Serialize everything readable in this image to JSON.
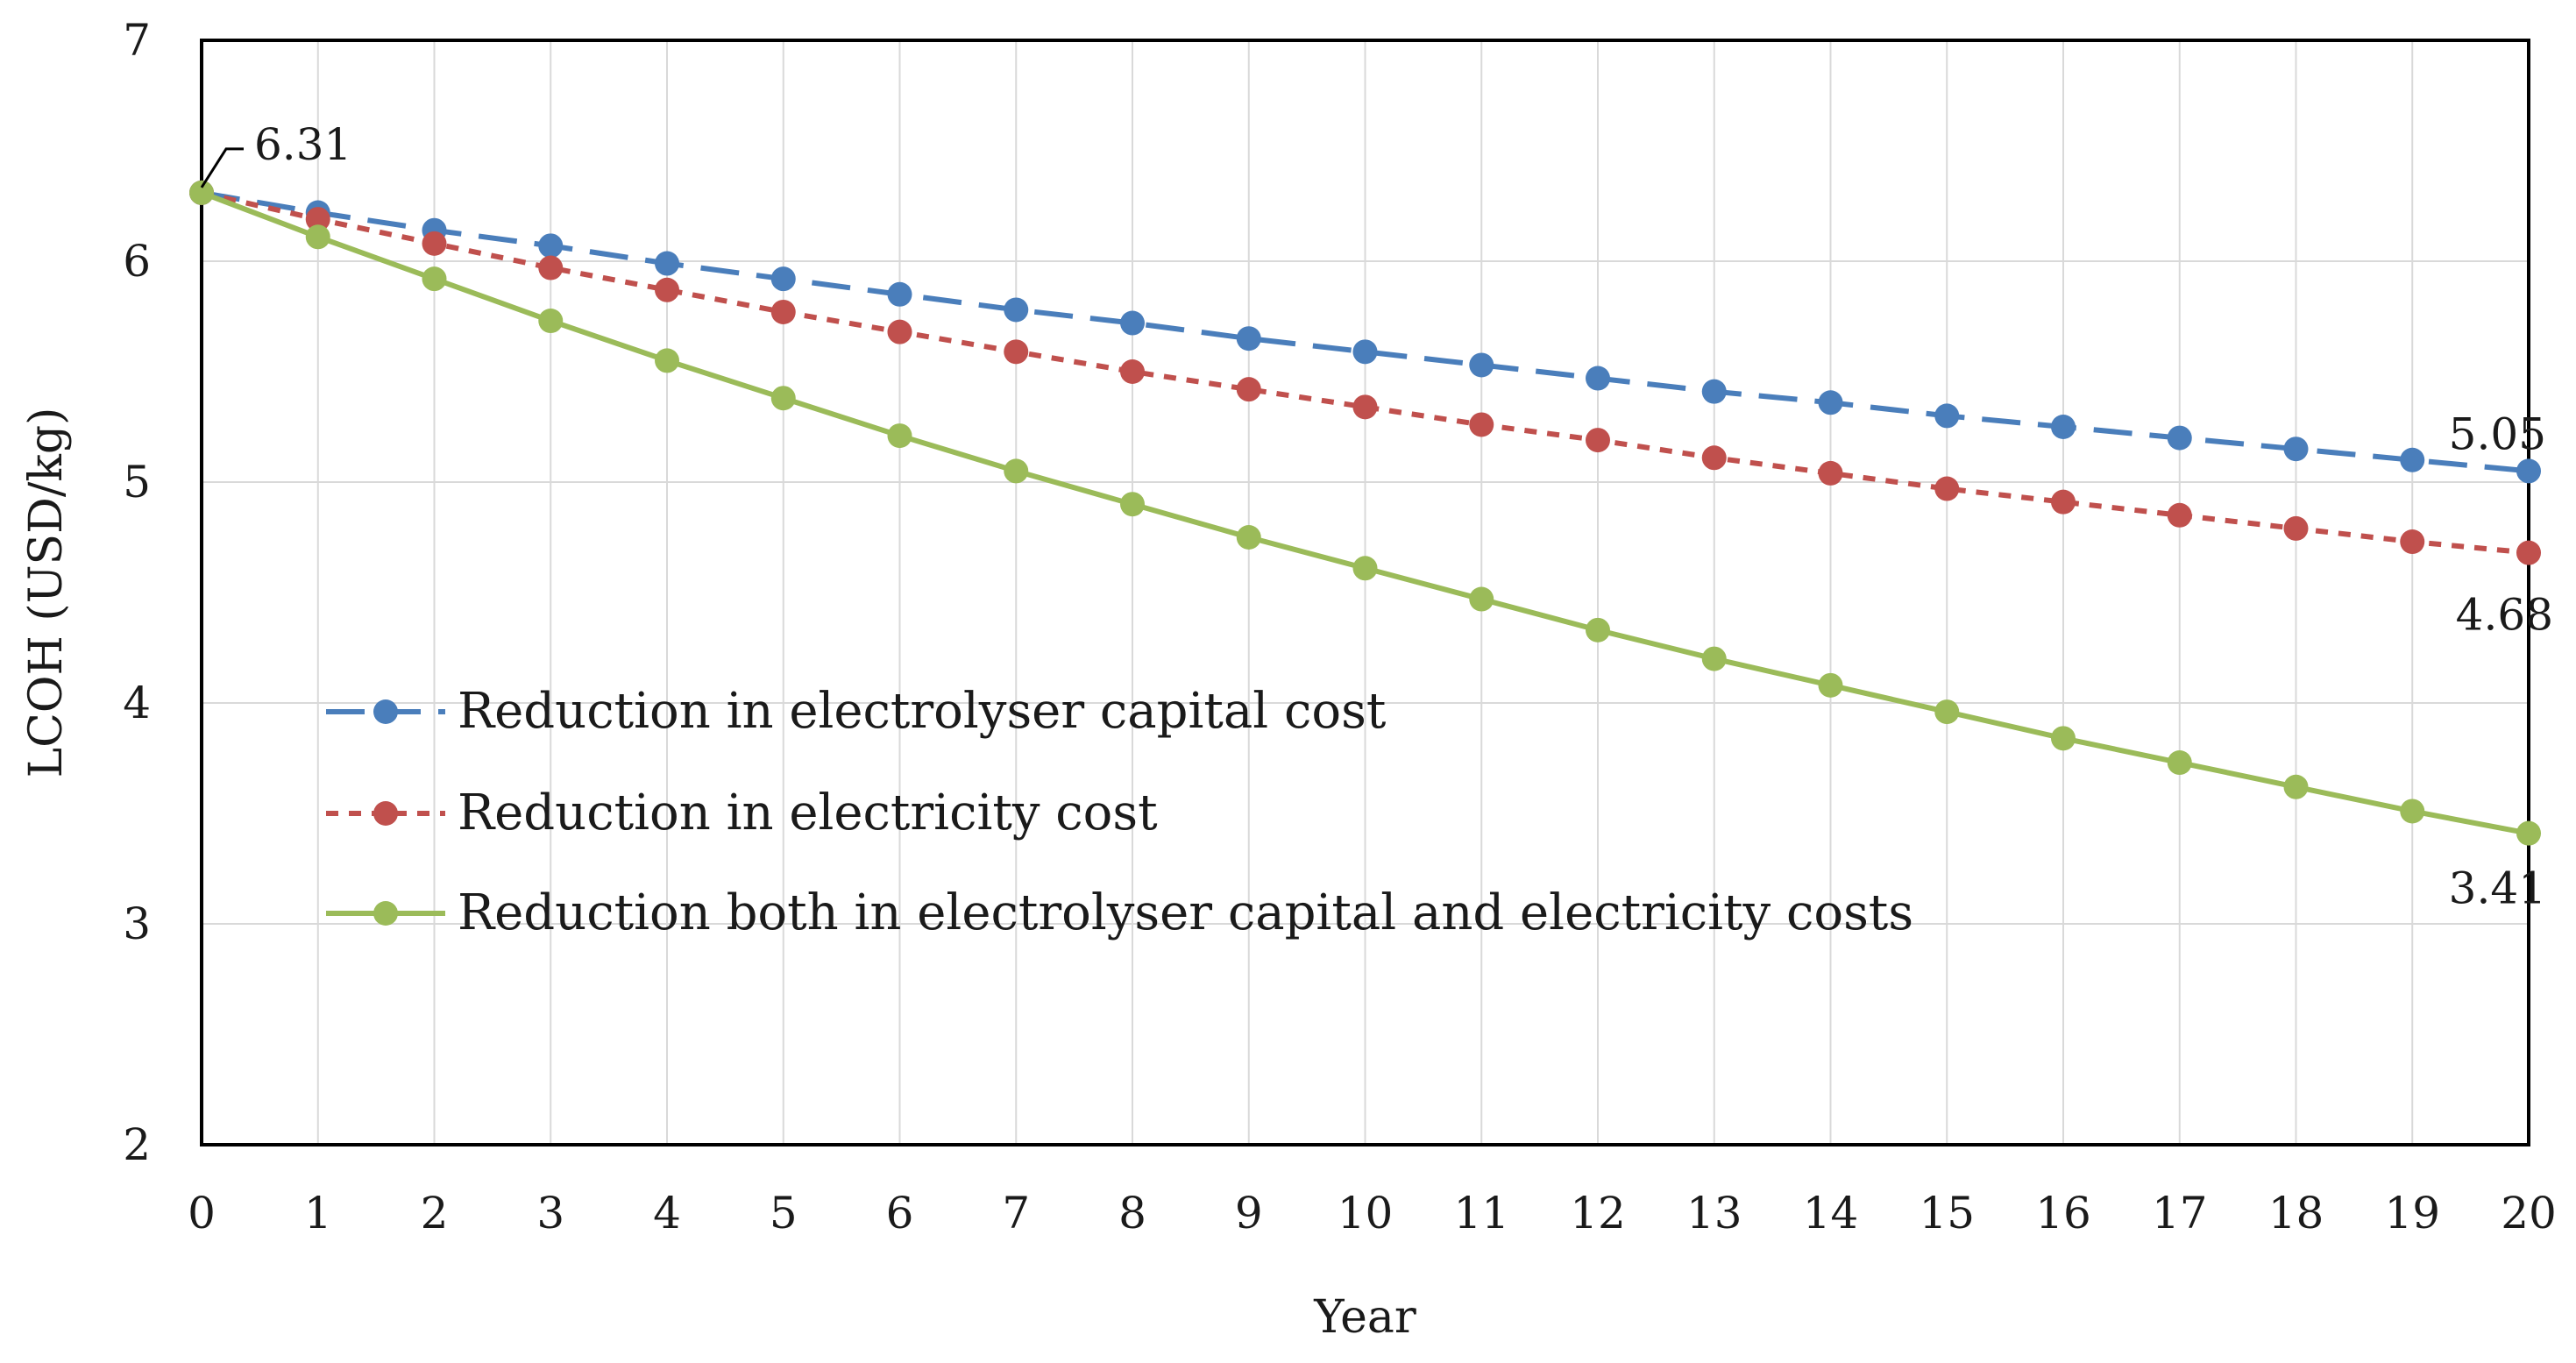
{
  "chart_data": {
    "type": "line",
    "title": "",
    "xlabel": "Year",
    "ylabel": "LCOH (USD/kg)",
    "xlim": [
      0,
      20
    ],
    "ylim": [
      2,
      7
    ],
    "grid": true,
    "legend_position": "center-left",
    "x": [
      0,
      1,
      2,
      3,
      4,
      5,
      6,
      7,
      8,
      9,
      10,
      11,
      12,
      13,
      14,
      15,
      16,
      17,
      18,
      19,
      20
    ],
    "x_tick_labels": [
      "0",
      "1",
      "2",
      "3",
      "4",
      "5",
      "6",
      "7",
      "8",
      "9",
      "10",
      "11",
      "12",
      "13",
      "14",
      "15",
      "16",
      "17",
      "18",
      "19",
      "20"
    ],
    "y_tick_labels": [
      "2",
      "3",
      "4",
      "5",
      "6",
      "7"
    ],
    "series": [
      {
        "name": "Reduction in electrolyser capital cost",
        "color": "#4a7ebb",
        "dash": "long-dash",
        "values": [
          6.31,
          6.22,
          6.14,
          6.07,
          5.99,
          5.92,
          5.85,
          5.78,
          5.72,
          5.65,
          5.59,
          5.53,
          5.47,
          5.41,
          5.36,
          5.3,
          5.25,
          5.2,
          5.15,
          5.1,
          5.05
        ]
      },
      {
        "name": "Reduction in electricity cost",
        "color": "#c0504d",
        "dash": "short-dash",
        "values": [
          6.31,
          6.19,
          6.08,
          5.97,
          5.87,
          5.77,
          5.68,
          5.59,
          5.5,
          5.42,
          5.34,
          5.26,
          5.19,
          5.11,
          5.04,
          4.97,
          4.91,
          4.85,
          4.79,
          4.73,
          4.68
        ]
      },
      {
        "name": "Reduction both in electrolyser capital and electricity costs",
        "color": "#9bbb59",
        "dash": "solid",
        "values": [
          6.31,
          6.11,
          5.92,
          5.73,
          5.55,
          5.38,
          5.21,
          5.05,
          4.9,
          4.75,
          4.61,
          4.47,
          4.33,
          4.2,
          4.08,
          3.96,
          3.84,
          3.73,
          3.62,
          3.51,
          3.41
        ]
      }
    ],
    "annotations": [
      {
        "text": "6.31",
        "x": 0,
        "y": 6.31
      },
      {
        "text": "5.05",
        "x": 20,
        "y": 5.05
      },
      {
        "text": "4.68",
        "x": 20,
        "y": 4.68
      },
      {
        "text": "3.41",
        "x": 20,
        "y": 3.41
      }
    ]
  }
}
